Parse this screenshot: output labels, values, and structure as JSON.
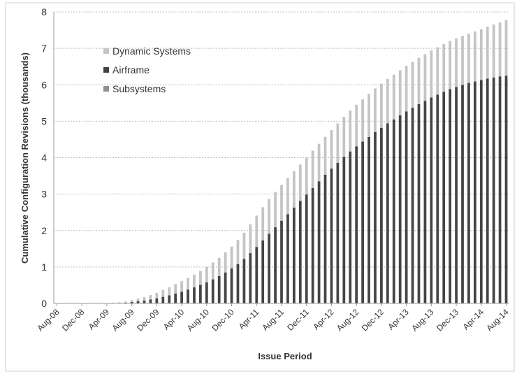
{
  "chart_data": {
    "type": "bar",
    "stacked": true,
    "title": "",
    "xlabel": "Issue Period",
    "ylabel": "Cumulative Configuration Revisions (thousands)",
    "ylim": [
      0,
      8
    ],
    "yticks": [
      "0",
      "1",
      "2",
      "3",
      "4",
      "5",
      "6",
      "7",
      "8"
    ],
    "grid": true,
    "legend_position": "top-left",
    "x_tick_labels": [
      "Aug-08",
      "Dec-08",
      "Apr-09",
      "Aug-09",
      "Dec-09",
      "Apr-10",
      "Aug-10",
      "Dec-10",
      "Apr-11",
      "Aug-11",
      "Dec-11",
      "Apr-12",
      "Aug-12",
      "Dec-12",
      "Apr-13",
      "Aug-13",
      "Dec-13",
      "Apr-14",
      "Aug-14"
    ],
    "categories": [
      "Aug-08",
      "Sep-08",
      "Oct-08",
      "Nov-08",
      "Dec-08",
      "Jan-09",
      "Feb-09",
      "Mar-09",
      "Apr-09",
      "May-09",
      "Jun-09",
      "Jul-09",
      "Aug-09",
      "Sep-09",
      "Oct-09",
      "Nov-09",
      "Dec-09",
      "Jan-10",
      "Feb-10",
      "Mar-10",
      "Apr-10",
      "May-10",
      "Jun-10",
      "Jul-10",
      "Aug-10",
      "Sep-10",
      "Oct-10",
      "Nov-10",
      "Dec-10",
      "Jan-11",
      "Feb-11",
      "Mar-11",
      "Apr-11",
      "May-11",
      "Jun-11",
      "Jul-11",
      "Aug-11",
      "Sep-11",
      "Oct-11",
      "Nov-11",
      "Dec-11",
      "Jan-12",
      "Feb-12",
      "Mar-12",
      "Apr-12",
      "May-12",
      "Jun-12",
      "Jul-12",
      "Aug-12",
      "Sep-12",
      "Oct-12",
      "Nov-12",
      "Dec-12",
      "Jan-13",
      "Feb-13",
      "Mar-13",
      "Apr-13",
      "May-13",
      "Jun-13",
      "Jul-13",
      "Aug-13",
      "Sep-13",
      "Oct-13",
      "Nov-13",
      "Dec-13",
      "Jan-14",
      "Feb-14",
      "Mar-14",
      "Apr-14",
      "May-14",
      "Jun-14",
      "Jul-14",
      "Aug-14"
    ],
    "series": [
      {
        "name": "Subsystems",
        "color": "#8f8f8f",
        "values": [
          0,
          0,
          0,
          0,
          0,
          0,
          0,
          0,
          0,
          0,
          0,
          0,
          0,
          0,
          0,
          0,
          0,
          0,
          0,
          0,
          0,
          0,
          0,
          0,
          0,
          0,
          0,
          0,
          0,
          0,
          0,
          0,
          0,
          0,
          0,
          0,
          0,
          0,
          0,
          0,
          0,
          0,
          0,
          0,
          0,
          0,
          0,
          0,
          0,
          0,
          0,
          0,
          0,
          0,
          0,
          0,
          0,
          0,
          0,
          0,
          0,
          0,
          0,
          0,
          0,
          0,
          0,
          0,
          0,
          0,
          0,
          0,
          0
        ]
      },
      {
        "name": "Airframe",
        "color": "#444444",
        "values": [
          0,
          0,
          0,
          0,
          0,
          0,
          0,
          0,
          0,
          0.01,
          0.01,
          0.02,
          0.04,
          0.06,
          0.08,
          0.11,
          0.14,
          0.18,
          0.22,
          0.27,
          0.32,
          0.38,
          0.44,
          0.51,
          0.58,
          0.66,
          0.75,
          0.85,
          0.96,
          1.08,
          1.22,
          1.38,
          1.55,
          1.73,
          1.91,
          2.09,
          2.27,
          2.45,
          2.63,
          2.81,
          2.99,
          3.17,
          3.35,
          3.53,
          3.7,
          3.86,
          4.02,
          4.17,
          4.31,
          4.44,
          4.57,
          4.7,
          4.82,
          4.94,
          5.05,
          5.16,
          5.27,
          5.37,
          5.47,
          5.56,
          5.65,
          5.73,
          5.81,
          5.88,
          5.94,
          6.0,
          6.05,
          6.09,
          6.13,
          6.17,
          6.2,
          6.23,
          6.25
        ]
      },
      {
        "name": "Dynamic Systems",
        "color": "#c4c4c4",
        "values": [
          0,
          0,
          0,
          0,
          0,
          0,
          0,
          0,
          0.01,
          0.01,
          0.02,
          0.03,
          0.05,
          0.07,
          0.09,
          0.12,
          0.15,
          0.19,
          0.22,
          0.26,
          0.29,
          0.32,
          0.35,
          0.38,
          0.42,
          0.46,
          0.5,
          0.55,
          0.6,
          0.66,
          0.72,
          0.79,
          0.86,
          0.91,
          0.95,
          0.97,
          0.98,
          0.99,
          1.0,
          1.0,
          1.01,
          1.02,
          1.03,
          1.04,
          1.06,
          1.08,
          1.1,
          1.12,
          1.14,
          1.16,
          1.18,
          1.2,
          1.21,
          1.22,
          1.23,
          1.24,
          1.25,
          1.26,
          1.27,
          1.28,
          1.29,
          1.3,
          1.31,
          1.32,
          1.33,
          1.34,
          1.35,
          1.37,
          1.39,
          1.42,
          1.45,
          1.48,
          1.52
        ]
      }
    ]
  }
}
